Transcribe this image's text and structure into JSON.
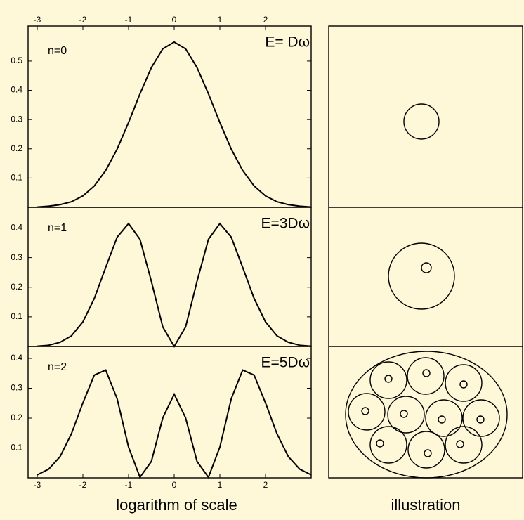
{
  "chart_data": [
    {
      "type": "line",
      "label": "n=0",
      "energy": "E= Dω",
      "color": "#000000",
      "x": [
        -3,
        -2.75,
        -2.5,
        -2.25,
        -2,
        -1.75,
        -1.5,
        -1.25,
        -1,
        -0.75,
        -0.5,
        -0.25,
        0,
        0.25,
        0.5,
        0.75,
        1,
        1.25,
        1.5,
        1.75,
        2,
        2.25,
        2.5,
        2.75,
        3
      ],
      "values": [
        0.001,
        0.004,
        0.009,
        0.019,
        0.039,
        0.073,
        0.126,
        0.199,
        0.29,
        0.388,
        0.478,
        0.542,
        0.565,
        0.542,
        0.478,
        0.388,
        0.29,
        0.199,
        0.126,
        0.073,
        0.039,
        0.019,
        0.009,
        0.004,
        0.001
      ],
      "xlim": [
        -3.2,
        3.0
      ],
      "ylim": [
        0,
        0.62
      ],
      "yticks": [
        0.1,
        0.2,
        0.3,
        0.4,
        0.5
      ],
      "xticks": [
        -3,
        -2,
        -1,
        0,
        1,
        2
      ],
      "xaxis_position": "top"
    },
    {
      "type": "line",
      "label": "n=1",
      "energy": "E=3Dω",
      "color": "#000000",
      "x": [
        -3,
        -2.75,
        -2.5,
        -2.25,
        -2,
        -1.75,
        -1.5,
        -1.25,
        -1,
        -0.75,
        -0.5,
        -0.25,
        0,
        0.25,
        0.5,
        0.75,
        1,
        1.25,
        1.5,
        1.75,
        2,
        2.25,
        2.5,
        2.75,
        3
      ],
      "values": [
        0.001,
        0.004,
        0.014,
        0.036,
        0.083,
        0.162,
        0.267,
        0.369,
        0.415,
        0.362,
        0.22,
        0.066,
        0,
        0.066,
        0.22,
        0.362,
        0.415,
        0.369,
        0.267,
        0.162,
        0.083,
        0.036,
        0.014,
        0.004,
        0.001
      ],
      "xlim": [
        -3.2,
        3.0
      ],
      "ylim": [
        0,
        0.47
      ],
      "yticks": [
        0.1,
        0.2,
        0.3,
        0.4
      ]
    },
    {
      "type": "line",
      "label": "n=2",
      "energy": "E=5Dω",
      "color": "#000000",
      "xlabel": "logarithm of scale",
      "x": [
        -3,
        -2.75,
        -2.5,
        -2.25,
        -2,
        -1.75,
        -1.5,
        -1.25,
        -1,
        -0.75,
        -0.5,
        -0.25,
        0,
        0.25,
        0.5,
        0.75,
        1,
        1.25,
        1.5,
        1.75,
        2,
        2.25,
        2.5,
        2.75,
        3
      ],
      "values": [
        0.01,
        0.029,
        0.071,
        0.148,
        0.251,
        0.344,
        0.361,
        0.265,
        0.103,
        0.002,
        0.055,
        0.201,
        0.28,
        0.201,
        0.055,
        0.002,
        0.103,
        0.265,
        0.361,
        0.344,
        0.251,
        0.148,
        0.071,
        0.029,
        0.01
      ],
      "xlim": [
        -3.2,
        3.0
      ],
      "ylim": [
        0,
        0.44
      ],
      "yticks": [
        0.1,
        0.2,
        0.3,
        0.4
      ],
      "xticks": [
        -3,
        -2,
        -1,
        0,
        1,
        2
      ],
      "xaxis_position": "bottom"
    }
  ],
  "illustration": {
    "label": "illustration"
  }
}
